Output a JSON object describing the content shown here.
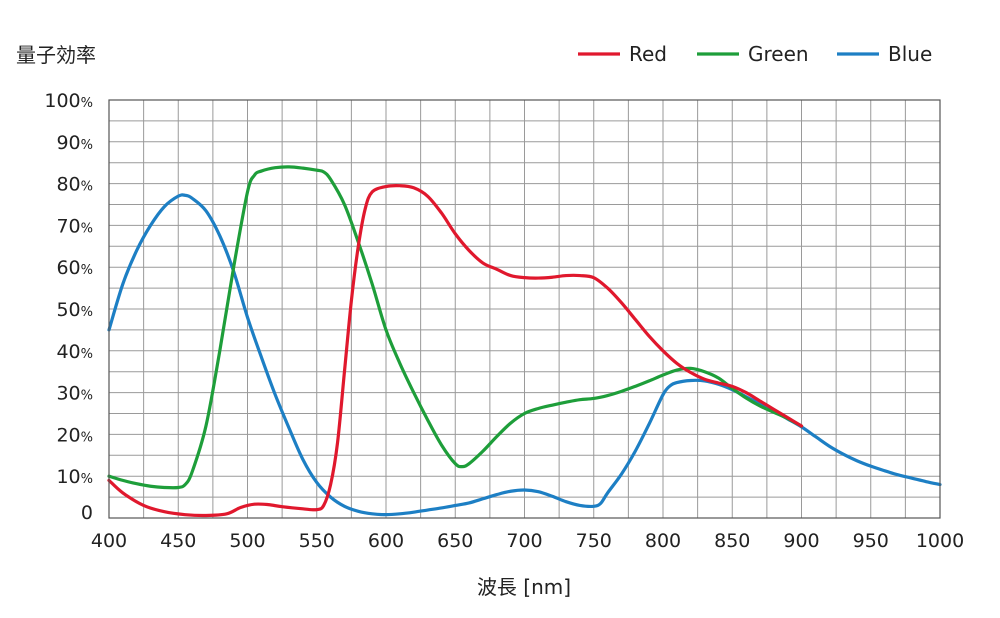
{
  "chart_data": {
    "type": "line",
    "ylabel": "量子効率",
    "xlabel": "波長 [nm]",
    "xlim": [
      400,
      1000
    ],
    "ylim": [
      0,
      100
    ],
    "x_ticks": [
      400,
      450,
      500,
      550,
      600,
      650,
      700,
      750,
      800,
      850,
      900,
      950,
      1000
    ],
    "y_ticks": [
      {
        "value": 0,
        "label": "0",
        "unit": ""
      },
      {
        "value": 10,
        "label": "10",
        "unit": "%"
      },
      {
        "value": 20,
        "label": "20",
        "unit": "%"
      },
      {
        "value": 30,
        "label": "30",
        "unit": "%"
      },
      {
        "value": 40,
        "label": "40",
        "unit": "%"
      },
      {
        "value": 50,
        "label": "50",
        "unit": "%"
      },
      {
        "value": 60,
        "label": "60",
        "unit": "%"
      },
      {
        "value": 70,
        "label": "70",
        "unit": "%"
      },
      {
        "value": 80,
        "label": "80",
        "unit": "%"
      },
      {
        "value": 90,
        "label": "90",
        "unit": "%"
      },
      {
        "value": 100,
        "label": "100",
        "unit": "%"
      }
    ],
    "grid": true,
    "legend_position": "top-right",
    "series": [
      {
        "name": "Red",
        "color": "#e0182d",
        "points": [
          [
            400,
            9
          ],
          [
            410,
            6
          ],
          [
            425,
            3
          ],
          [
            440,
            1.5
          ],
          [
            455,
            0.8
          ],
          [
            470,
            0.6
          ],
          [
            485,
            1
          ],
          [
            495,
            2.5
          ],
          [
            505,
            3.3
          ],
          [
            515,
            3.2
          ],
          [
            525,
            2.7
          ],
          [
            540,
            2.2
          ],
          [
            550,
            2
          ],
          [
            555,
            3
          ],
          [
            560,
            8
          ],
          [
            565,
            18
          ],
          [
            570,
            35
          ],
          [
            575,
            52
          ],
          [
            580,
            65
          ],
          [
            585,
            74
          ],
          [
            590,
            78
          ],
          [
            600,
            79.3
          ],
          [
            610,
            79.5
          ],
          [
            620,
            79
          ],
          [
            630,
            77
          ],
          [
            640,
            73
          ],
          [
            650,
            68
          ],
          [
            660,
            64
          ],
          [
            670,
            61
          ],
          [
            680,
            59.5
          ],
          [
            690,
            58
          ],
          [
            700,
            57.5
          ],
          [
            710,
            57.4
          ],
          [
            720,
            57.6
          ],
          [
            730,
            58
          ],
          [
            740,
            58
          ],
          [
            750,
            57.5
          ],
          [
            760,
            55
          ],
          [
            770,
            51.5
          ],
          [
            780,
            47.5
          ],
          [
            790,
            43.5
          ],
          [
            800,
            40
          ],
          [
            810,
            37
          ],
          [
            820,
            34.8
          ],
          [
            830,
            33.2
          ],
          [
            840,
            32.3
          ],
          [
            850,
            31.5
          ],
          [
            860,
            30
          ],
          [
            870,
            28
          ],
          [
            880,
            26
          ],
          [
            890,
            24
          ],
          [
            900,
            22
          ]
        ]
      },
      {
        "name": "Green",
        "color": "#1e9e3a",
        "points": [
          [
            400,
            10
          ],
          [
            410,
            9
          ],
          [
            420,
            8.2
          ],
          [
            430,
            7.6
          ],
          [
            440,
            7.3
          ],
          [
            450,
            7.3
          ],
          [
            455,
            8
          ],
          [
            460,
            11
          ],
          [
            470,
            22
          ],
          [
            480,
            40
          ],
          [
            490,
            60
          ],
          [
            500,
            78
          ],
          [
            505,
            82
          ],
          [
            510,
            83
          ],
          [
            520,
            83.8
          ],
          [
            530,
            84
          ],
          [
            540,
            83.7
          ],
          [
            550,
            83.2
          ],
          [
            555,
            82.8
          ],
          [
            560,
            81
          ],
          [
            570,
            75
          ],
          [
            580,
            66
          ],
          [
            590,
            56
          ],
          [
            600,
            45
          ],
          [
            610,
            37
          ],
          [
            620,
            30
          ],
          [
            630,
            23.5
          ],
          [
            640,
            17.5
          ],
          [
            650,
            13
          ],
          [
            655,
            12.3
          ],
          [
            660,
            13
          ],
          [
            670,
            16
          ],
          [
            680,
            19.5
          ],
          [
            690,
            22.7
          ],
          [
            700,
            25
          ],
          [
            710,
            26.2
          ],
          [
            720,
            27
          ],
          [
            730,
            27.7
          ],
          [
            740,
            28.3
          ],
          [
            750,
            28.6
          ],
          [
            760,
            29.3
          ],
          [
            770,
            30.3
          ],
          [
            780,
            31.5
          ],
          [
            790,
            32.8
          ],
          [
            800,
            34.2
          ],
          [
            810,
            35.4
          ],
          [
            820,
            35.8
          ],
          [
            830,
            35
          ],
          [
            840,
            33.5
          ],
          [
            850,
            31
          ],
          [
            860,
            28.7
          ],
          [
            870,
            26.8
          ],
          [
            880,
            25.3
          ],
          [
            890,
            23.8
          ],
          [
            900,
            22
          ]
        ]
      },
      {
        "name": "Blue",
        "color": "#1d7fc4",
        "points": [
          [
            400,
            45
          ],
          [
            410,
            56
          ],
          [
            420,
            64
          ],
          [
            430,
            70
          ],
          [
            440,
            74.5
          ],
          [
            450,
            77
          ],
          [
            455,
            77.2
          ],
          [
            460,
            76.5
          ],
          [
            470,
            73.5
          ],
          [
            480,
            67.5
          ],
          [
            490,
            59
          ],
          [
            500,
            48
          ],
          [
            510,
            38.5
          ],
          [
            520,
            29.5
          ],
          [
            530,
            21.5
          ],
          [
            540,
            14
          ],
          [
            550,
            8.5
          ],
          [
            560,
            5
          ],
          [
            570,
            2.8
          ],
          [
            580,
            1.6
          ],
          [
            590,
            1
          ],
          [
            600,
            0.8
          ],
          [
            610,
            1
          ],
          [
            620,
            1.4
          ],
          [
            630,
            1.9
          ],
          [
            640,
            2.4
          ],
          [
            650,
            3
          ],
          [
            660,
            3.6
          ],
          [
            670,
            4.6
          ],
          [
            680,
            5.6
          ],
          [
            690,
            6.4
          ],
          [
            700,
            6.7
          ],
          [
            710,
            6.3
          ],
          [
            720,
            5.2
          ],
          [
            730,
            3.9
          ],
          [
            740,
            3
          ],
          [
            750,
            2.8
          ],
          [
            755,
            3.5
          ],
          [
            760,
            6
          ],
          [
            770,
            10.5
          ],
          [
            780,
            16
          ],
          [
            790,
            22.5
          ],
          [
            800,
            29.5
          ],
          [
            805,
            31.6
          ],
          [
            810,
            32.4
          ],
          [
            820,
            32.9
          ],
          [
            830,
            32.8
          ],
          [
            840,
            32
          ],
          [
            850,
            30.7
          ],
          [
            860,
            29
          ],
          [
            870,
            27.3
          ],
          [
            880,
            25.6
          ],
          [
            890,
            23.7
          ],
          [
            900,
            21.8
          ],
          [
            910,
            19.5
          ],
          [
            920,
            17.2
          ],
          [
            930,
            15.3
          ],
          [
            940,
            13.7
          ],
          [
            950,
            12.4
          ],
          [
            960,
            11.3
          ],
          [
            970,
            10.3
          ],
          [
            980,
            9.5
          ],
          [
            990,
            8.7
          ],
          [
            1000,
            8
          ]
        ]
      }
    ]
  }
}
